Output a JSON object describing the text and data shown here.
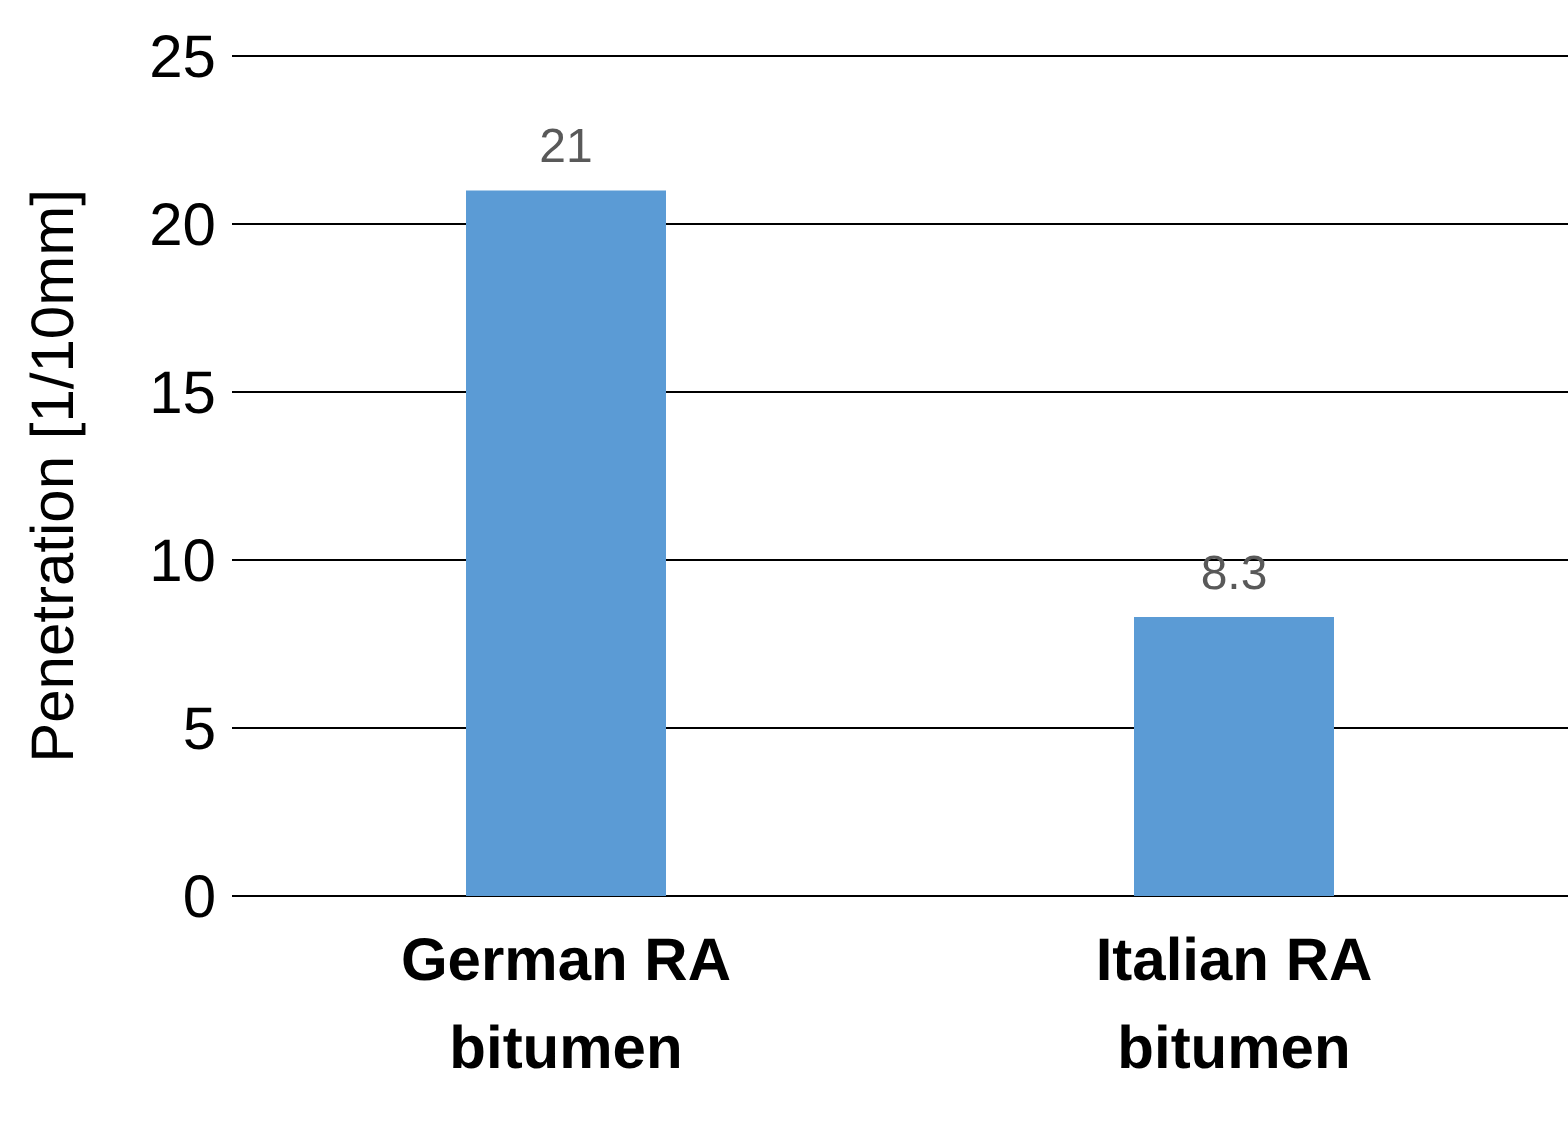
{
  "chart_data": {
    "type": "bar",
    "ylabel": "Penetration [1/10mm]",
    "categories": [
      "German RA bitumen",
      "Italian RA bitumen"
    ],
    "values": [
      21,
      8.3
    ],
    "color": "#5b9bd5",
    "ylim": [
      0,
      25
    ],
    "yticks": [
      0,
      5,
      10,
      15,
      20,
      25
    ],
    "grid": "y",
    "data_labels": true,
    "legend": false
  }
}
